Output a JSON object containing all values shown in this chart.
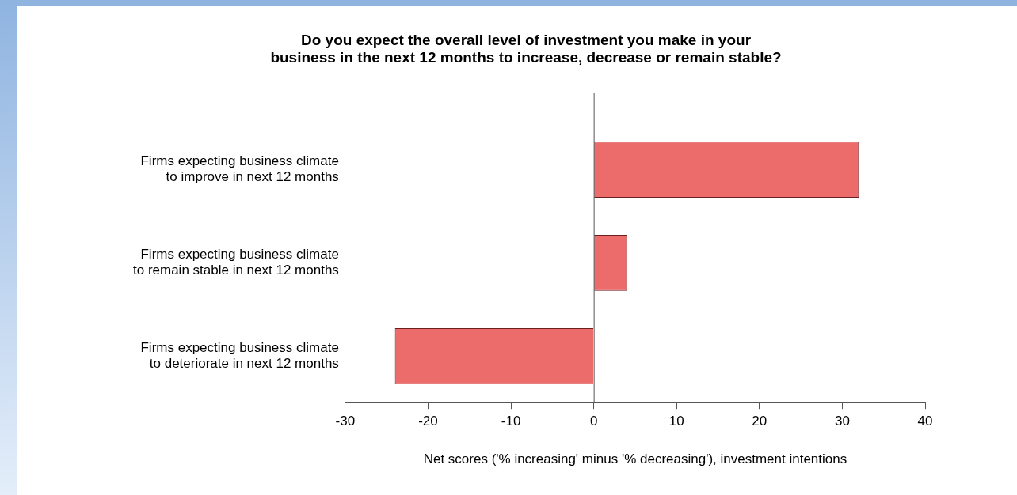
{
  "chart_data": {
    "type": "bar",
    "orientation": "horizontal",
    "title": "Do you expect the overall level of investment you make in your\nbusiness in the next 12 months to increase, decrease or remain stable?",
    "xlabel": "Net scores ('% increasing' minus '% decreasing'), investment intentions",
    "categories": [
      "Firms expecting business climate\nto improve in next 12 months",
      "Firms expecting business climate\nto remain stable in next 12 months",
      "Firms expecting business climate\nto deteriorate in next 12 months"
    ],
    "values": [
      32,
      4,
      -24
    ],
    "color": "#ec6b6b",
    "xlim": [
      -30,
      40
    ],
    "xticks": [
      -30,
      -20,
      -10,
      0,
      10,
      20,
      30,
      40
    ],
    "grid": false,
    "legend": false,
    "ref_lines": [
      {
        "axis": "x",
        "value": 0,
        "color": "#555555"
      }
    ]
  }
}
